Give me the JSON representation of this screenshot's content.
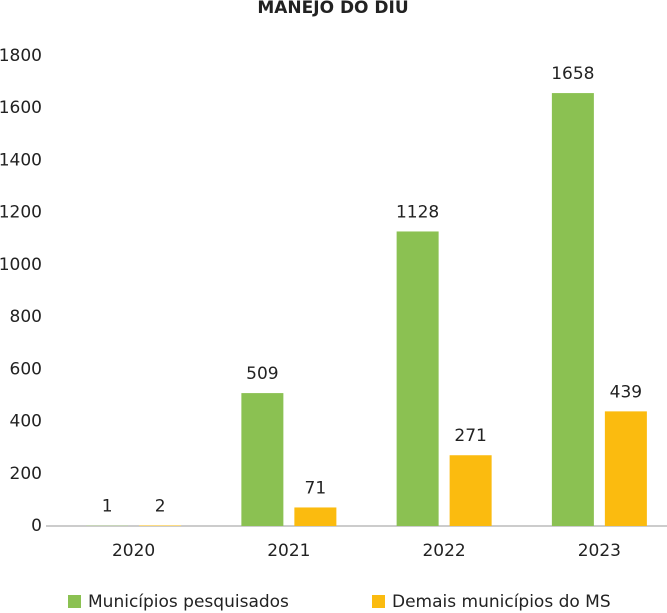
{
  "chart_data": {
    "type": "bar",
    "title": "MANEJO DO DIU",
    "categories": [
      "2020",
      "2021",
      "2022",
      "2023"
    ],
    "series": [
      {
        "name": "Municípios pesquisados",
        "color": "#8bc152",
        "values": [
          1,
          509,
          1128,
          1658
        ]
      },
      {
        "name": "Demais municípios do MS",
        "color": "#fbbb0f",
        "values": [
          2,
          71,
          271,
          439
        ]
      }
    ],
    "ylim": [
      0,
      1800
    ],
    "yticks": [
      0,
      200,
      400,
      600,
      800,
      1000,
      1200,
      1400,
      1600,
      1800
    ],
    "grid": false,
    "legend": "bottom"
  }
}
